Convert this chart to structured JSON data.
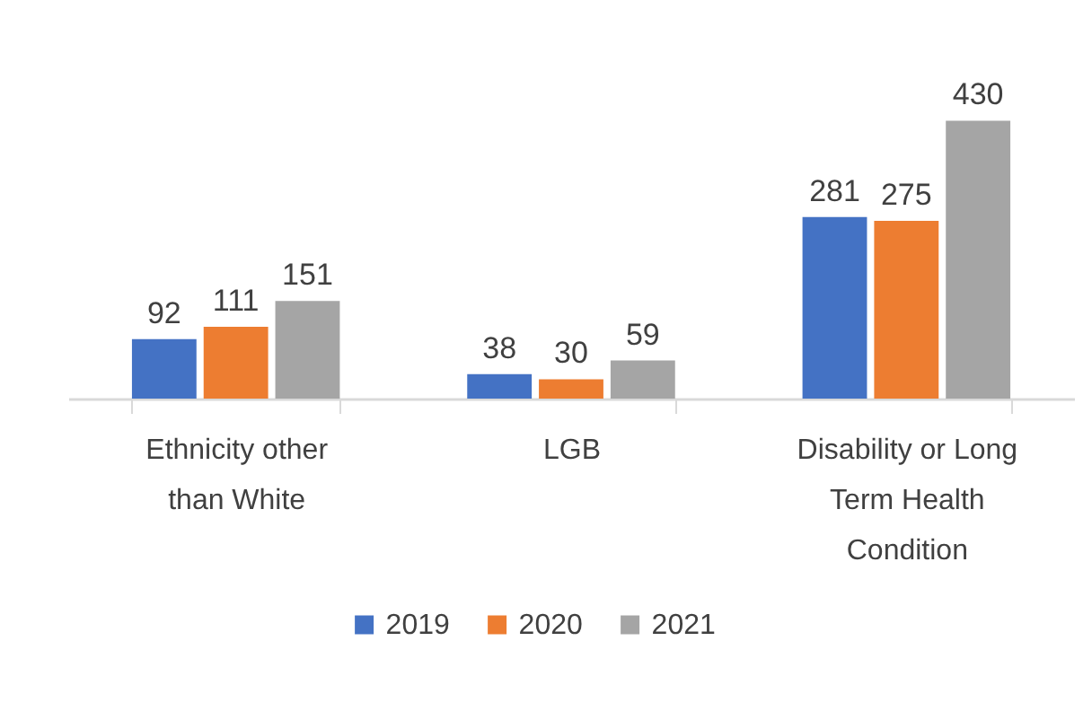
{
  "chart_data": {
    "type": "bar",
    "categories": [
      "Ethnicity other than White",
      "LGB",
      "Disability or Long Term Health Condition"
    ],
    "series": [
      {
        "name": "2019",
        "color": "#4472c4",
        "values": [
          92,
          38,
          281
        ]
      },
      {
        "name": "2020",
        "color": "#ed7d31",
        "values": [
          111,
          30,
          275
        ]
      },
      {
        "name": "2021",
        "color": "#a5a5a5",
        "values": [
          151,
          59,
          430
        ]
      }
    ],
    "data_labels": true,
    "legend": "bottom"
  }
}
